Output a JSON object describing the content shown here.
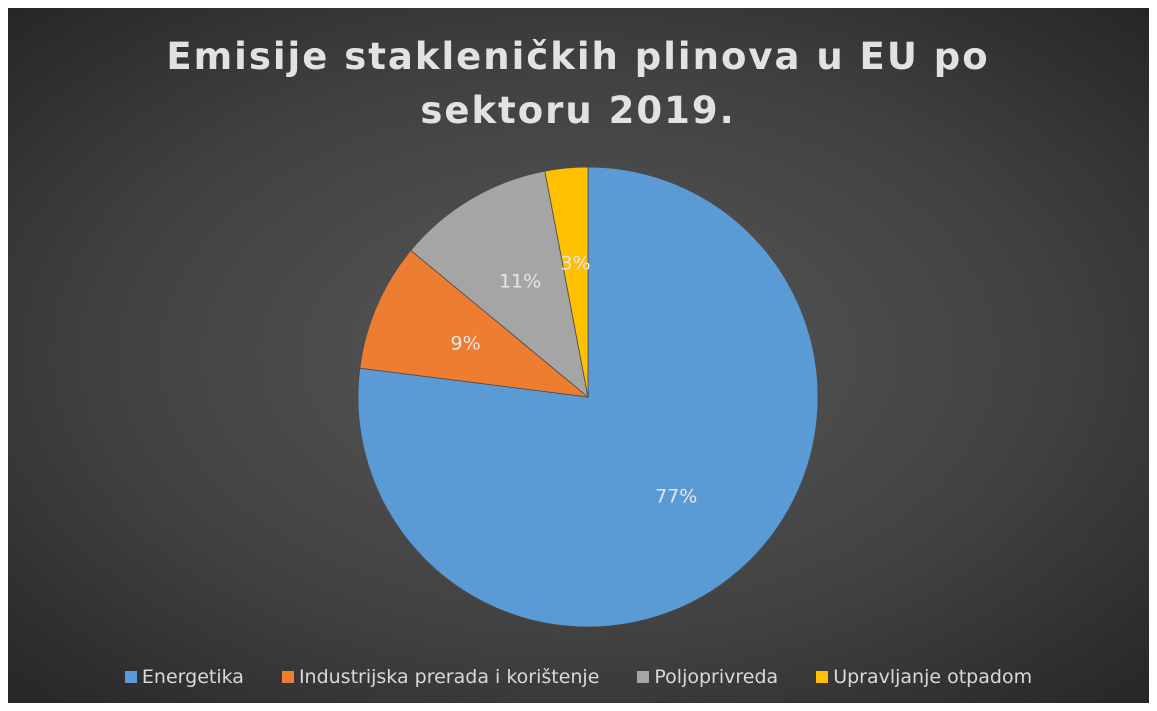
{
  "chart_data": {
    "type": "pie",
    "title": "Emisije stakleničkih plinova u EU po sektoru 2019.",
    "categories": [
      "Energetika",
      "Industrijska prerada i korištenje",
      "Poljoprivreda",
      "Upravljanje otpadom"
    ],
    "values": [
      77,
      9,
      11,
      3
    ],
    "value_labels": [
      "77%",
      "9%",
      "11%",
      "3%"
    ],
    "colors": [
      "#5b9bd5",
      "#ed7d31",
      "#a5a5a5",
      "#ffc000"
    ],
    "legend": "bottom"
  }
}
